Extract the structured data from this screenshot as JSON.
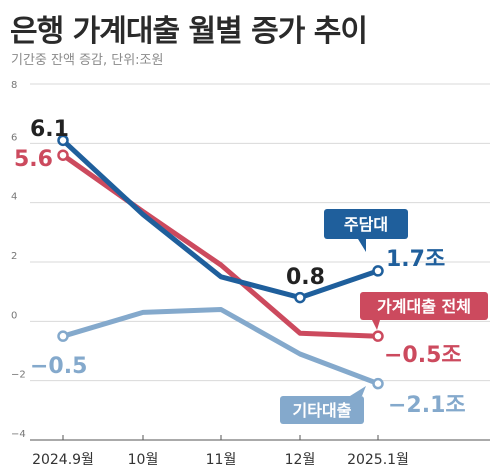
{
  "title": "은행 가계대출 월별 증가 추이",
  "subtitle": "기간중 잔액 증감, 단위:조원",
  "colors": {
    "housing": "#1f5f9c",
    "total": "#cc4a5e",
    "other": "#84a9cc",
    "grid": "#d9d9d9",
    "axis": "#555555"
  },
  "chart_data": {
    "type": "line",
    "categories": [
      "2024.9월",
      "10월",
      "11월",
      "12월",
      "2025.1월"
    ],
    "ylim": [
      -4,
      8
    ],
    "yticks": [
      "8",
      "6",
      "4",
      "2",
      "0",
      "−2",
      "−4"
    ],
    "series": [
      {
        "key": "other",
        "name": "기타대출",
        "values": [
          -0.5,
          0.3,
          0.4,
          -1.1,
          -2.1
        ]
      },
      {
        "key": "total",
        "name": "가계대출 전체",
        "values": [
          5.6,
          3.7,
          1.9,
          -0.4,
          -0.5
        ]
      },
      {
        "key": "housing",
        "name": "주담대",
        "values": [
          6.1,
          3.6,
          1.5,
          0.8,
          1.7
        ]
      }
    ],
    "labels": {
      "housing_start": "6.1",
      "total_start": "5.6",
      "other_start": "−0.5",
      "housing_dec": "0.8",
      "housing_end": "1.7조",
      "total_end": "−0.5조",
      "other_end": "−2.1조"
    }
  }
}
